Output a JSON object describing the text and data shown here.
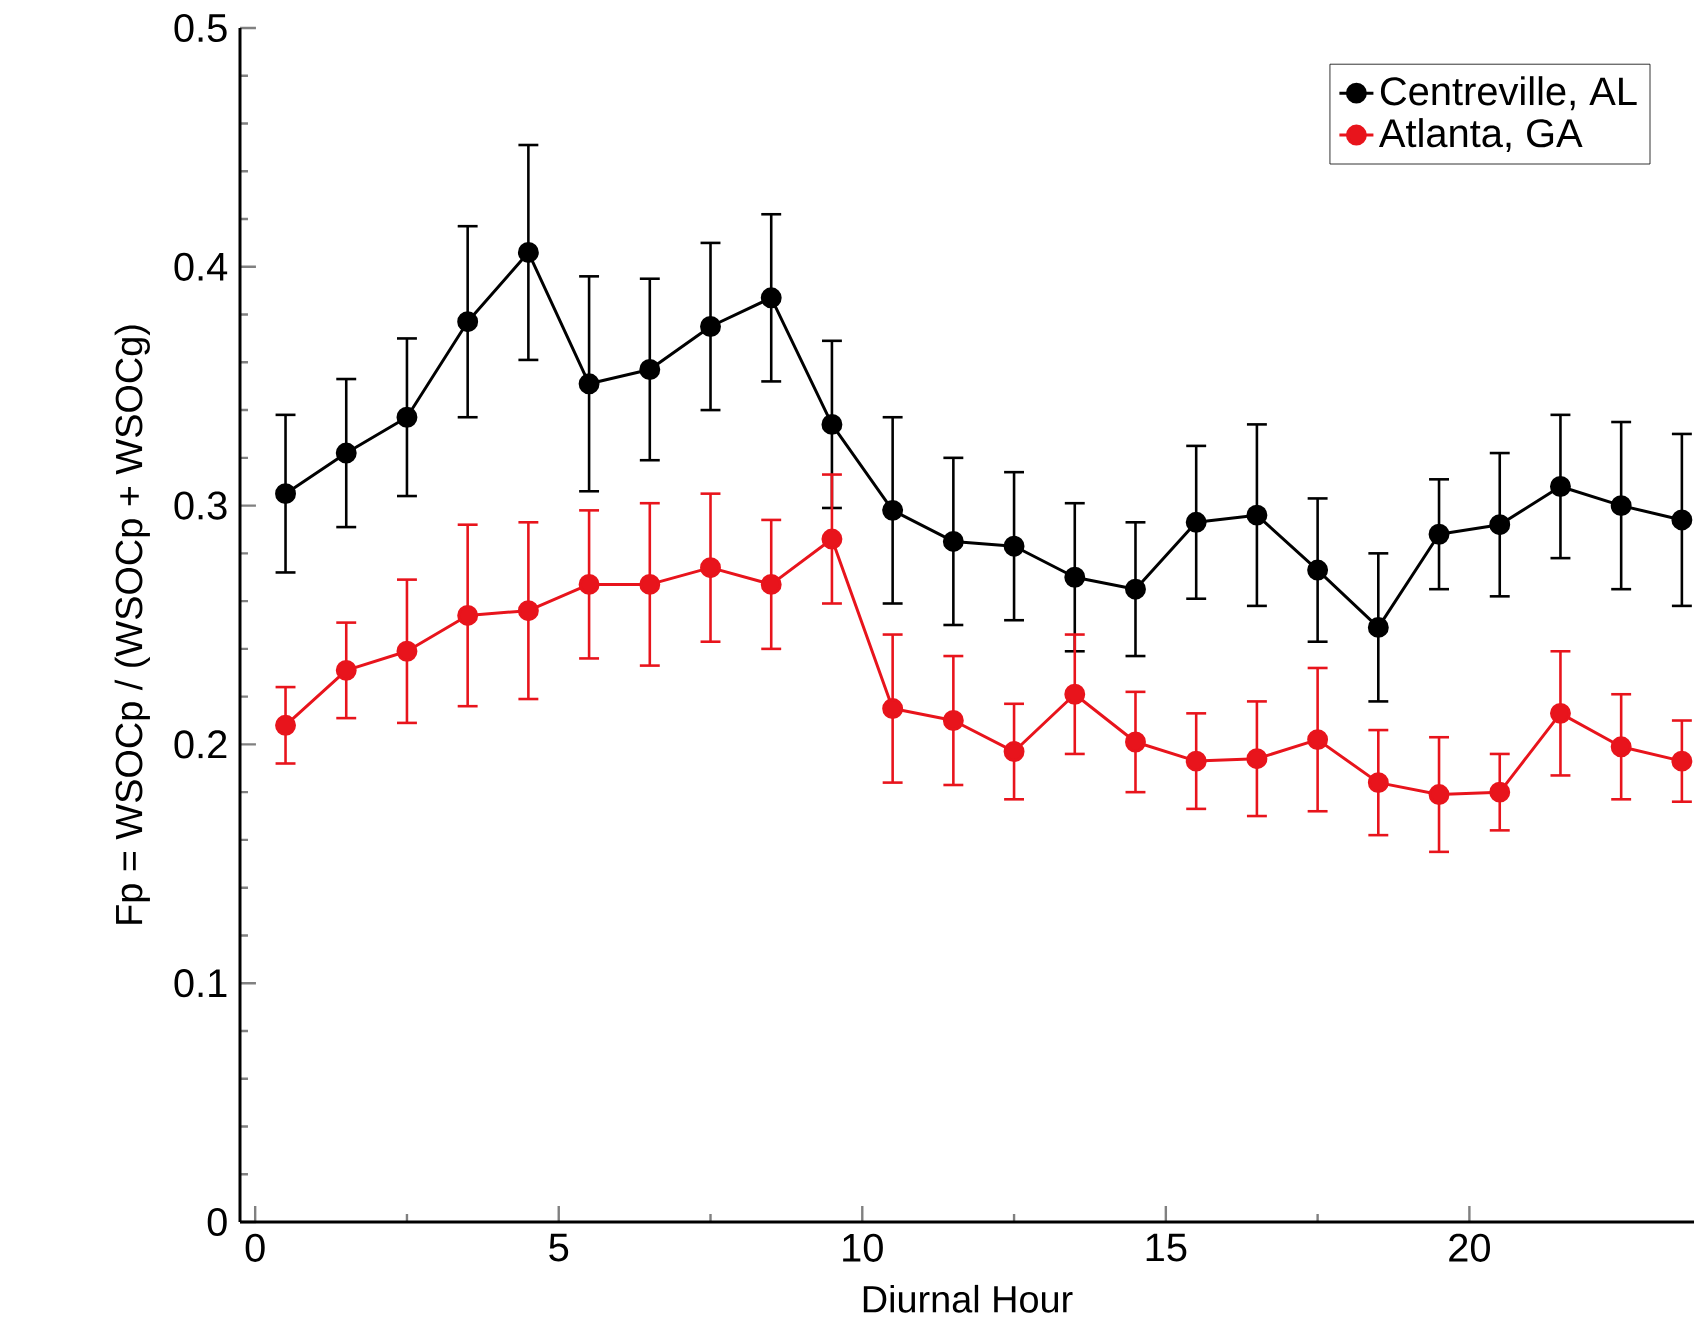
{
  "chart_data": {
    "type": "line",
    "xlabel": "Diurnal Hour",
    "ylabel": "Fp = WSOCp / (WSOCp + WSOCg)",
    "x": [
      0.5,
      1.5,
      2.5,
      3.5,
      4.5,
      5.5,
      6.5,
      7.5,
      8.5,
      9.5,
      10.5,
      11.5,
      12.5,
      13.5,
      14.5,
      15.5,
      16.5,
      17.5,
      18.5,
      19.5,
      20.5,
      21.5,
      22.5,
      23.5
    ],
    "series": [
      {
        "name": "Centreville, AL",
        "color": "#000000",
        "values": [
          0.305,
          0.322,
          0.337,
          0.377,
          0.406,
          0.351,
          0.357,
          0.375,
          0.387,
          0.334,
          0.298,
          0.285,
          0.283,
          0.27,
          0.265,
          0.293,
          0.296,
          0.273,
          0.249,
          0.288,
          0.292,
          0.308,
          0.3,
          0.294
        ],
        "errors": [
          0.033,
          0.031,
          0.033,
          0.04,
          0.045,
          0.045,
          0.038,
          0.035,
          0.035,
          0.035,
          0.039,
          0.035,
          0.031,
          0.031,
          0.028,
          0.032,
          0.038,
          0.03,
          0.031,
          0.023,
          0.03,
          0.03,
          0.035,
          0.036
        ]
      },
      {
        "name": "Atlanta, GA",
        "color": "#e8141c",
        "values": [
          0.208,
          0.231,
          0.239,
          0.254,
          0.256,
          0.267,
          0.267,
          0.274,
          0.267,
          0.286,
          0.215,
          0.21,
          0.197,
          0.221,
          0.201,
          0.193,
          0.194,
          0.202,
          0.184,
          0.179,
          0.18,
          0.213,
          0.199,
          0.193
        ],
        "errors": [
          0.016,
          0.02,
          0.03,
          0.038,
          0.037,
          0.031,
          0.034,
          0.031,
          0.027,
          0.027,
          0.031,
          0.027,
          0.02,
          0.025,
          0.021,
          0.02,
          0.024,
          0.03,
          0.022,
          0.024,
          0.016,
          0.026,
          0.022,
          0.017
        ]
      }
    ],
    "xlim": [
      -0.25,
      23.7
    ],
    "ylim": [
      0,
      0.5
    ],
    "xticks": [
      0,
      5,
      10,
      15,
      20
    ],
    "yticks": [
      0,
      0.1,
      0.2,
      0.3,
      0.4,
      0.5
    ],
    "legend": "top right",
    "marker": "circle",
    "line_style": "solid",
    "grid": false
  }
}
